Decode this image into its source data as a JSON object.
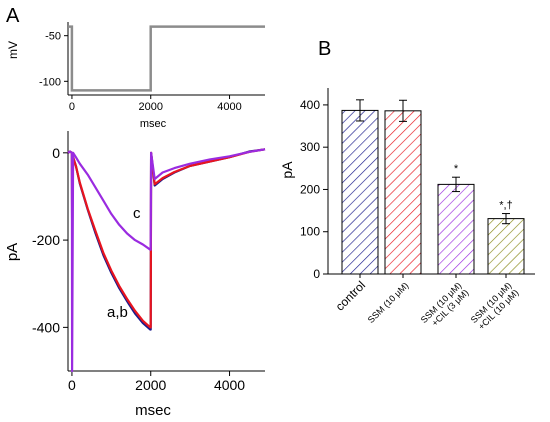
{
  "panels": {
    "a_label": "A",
    "b_label": "B"
  },
  "chart_data": [
    {
      "panel": "A-top",
      "type": "line",
      "title": "",
      "xlabel": "msec",
      "ylabel": "mV",
      "xlim": [
        -100,
        4900
      ],
      "ylim": [
        -115,
        -35
      ],
      "x_ticks": [
        0,
        2000,
        4000
      ],
      "y_ticks": [
        -50,
        -100
      ],
      "grid": false,
      "series": [
        {
          "color": "#8c8c8c",
          "x": [
            -100,
            0,
            0,
            2000,
            2000,
            4900
          ],
          "y": [
            -40,
            -40,
            -110,
            -110,
            -40,
            -40
          ]
        }
      ]
    },
    {
      "panel": "A-bottom",
      "type": "line",
      "title": "",
      "xlabel": "msec",
      "ylabel": "pA",
      "xlim": [
        -100,
        4900
      ],
      "ylim": [
        -500,
        50
      ],
      "x_ticks": [
        0,
        2000,
        4000
      ],
      "y_ticks": [
        0,
        -200,
        -400
      ],
      "grid": false,
      "annotations": [
        "c",
        "a,b"
      ],
      "series": [
        {
          "label": "a",
          "color": "#1a1a8c",
          "x": [
            -100,
            -50,
            0,
            5,
            30,
            100,
            200,
            400,
            600,
            800,
            1000,
            1200,
            1400,
            1600,
            1800,
            1990,
            2000,
            2010,
            2100,
            2300,
            2600,
            3000,
            3500,
            4000,
            4500,
            4900
          ],
          "y": [
            0,
            3,
            0,
            -150,
            -10,
            -30,
            -70,
            -130,
            -185,
            -235,
            -275,
            -310,
            -340,
            -368,
            -390,
            -405,
            -405,
            0,
            -75,
            -60,
            -45,
            -30,
            -20,
            -10,
            3,
            8
          ]
        },
        {
          "label": "b",
          "color": "#e8141e",
          "x": [
            -100,
            -50,
            0,
            5,
            30,
            100,
            200,
            400,
            600,
            800,
            1000,
            1200,
            1400,
            1600,
            1800,
            1990,
            2000,
            2010,
            2100,
            2300,
            2600,
            3000,
            3500,
            4000,
            4500,
            4900
          ],
          "y": [
            0,
            3,
            0,
            -150,
            -10,
            -30,
            -68,
            -128,
            -180,
            -230,
            -270,
            -305,
            -335,
            -362,
            -385,
            -400,
            -400,
            0,
            -72,
            -58,
            -44,
            -30,
            -20,
            -10,
            2,
            8
          ]
        },
        {
          "label": "c",
          "color": "#9a2be0",
          "x": [
            -100,
            -50,
            0,
            5,
            30,
            100,
            200,
            400,
            600,
            800,
            1000,
            1200,
            1400,
            1600,
            1800,
            1990,
            2000,
            2010,
            2100,
            2300,
            2600,
            3000,
            3500,
            4000,
            4500,
            4900
          ],
          "y": [
            0,
            3,
            0,
            -500,
            0,
            -10,
            -25,
            -50,
            -80,
            -110,
            -140,
            -165,
            -185,
            -200,
            -210,
            -222,
            -222,
            0,
            -60,
            -45,
            -35,
            -25,
            -15,
            -8,
            2,
            8
          ]
        }
      ]
    },
    {
      "panel": "B",
      "type": "bar",
      "title": "",
      "xlabel": "",
      "ylabel": "pA",
      "ylim": [
        0,
        440
      ],
      "y_ticks": [
        0,
        100,
        200,
        300,
        400
      ],
      "grid": false,
      "categories": [
        "control",
        "SSM (10 μM)",
        "SSM (10 μM) +CIL (3 μM)",
        "SSM (10 μM) +CIL (10 μM)"
      ],
      "category_lines": [
        [
          "control"
        ],
        [
          "SSM (10 μM)"
        ],
        [
          "SSM (10 μM)",
          "+CIL (3 μM)"
        ],
        [
          "SSM (10 μM)",
          "+CIL (10 μM)"
        ]
      ],
      "values": [
        387,
        386,
        212,
        131
      ],
      "errors": [
        25,
        25,
        17,
        12
      ],
      "significance": [
        "",
        "",
        "*",
        "*,†"
      ],
      "colors": [
        "#1a1a8c",
        "#e8141e",
        "#9a2be0",
        "#8a8a1a"
      ]
    }
  ]
}
